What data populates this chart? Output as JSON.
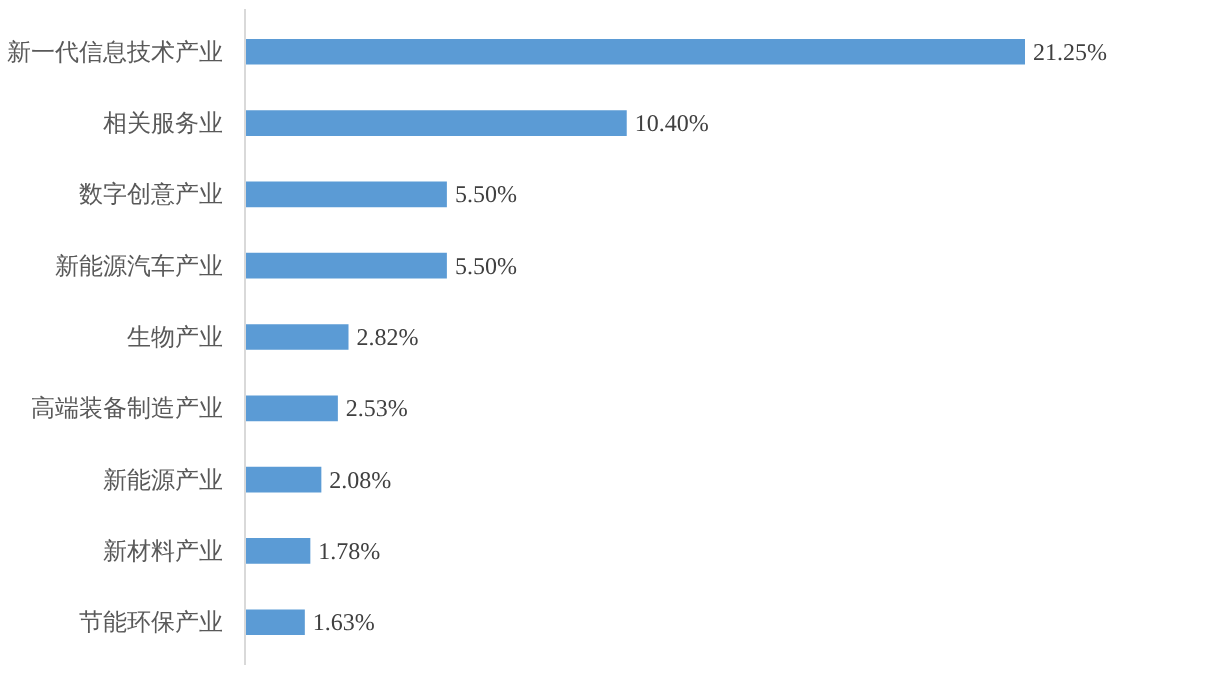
{
  "chart_data": {
    "type": "bar",
    "orientation": "horizontal",
    "categories": [
      "新一代信息技术产业",
      "相关服务业",
      "数字创意产业",
      "新能源汽车产业",
      "生物产业",
      "高端装备制造产业",
      "新能源产业",
      "新材料产业",
      "节能环保产业"
    ],
    "values": [
      21.25,
      10.4,
      5.5,
      5.5,
      2.82,
      2.53,
      2.08,
      1.78,
      1.63
    ],
    "value_labels": [
      "21.25%",
      "10.40%",
      "5.50%",
      "5.50%",
      "2.82%",
      "2.53%",
      "2.08%",
      "1.78%",
      "1.63%"
    ],
    "color": "#5b9bd5",
    "grid": false
  }
}
